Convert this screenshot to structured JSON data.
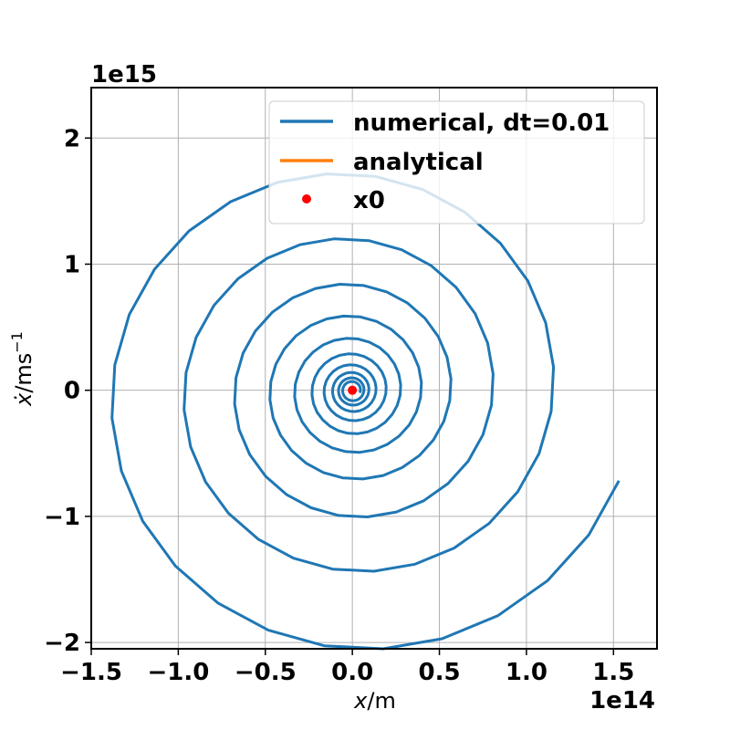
{
  "chart_data": {
    "type": "line",
    "x_multiplier_label": "1e14",
    "y_multiplier_label": "1e15",
    "x_multiplier": 100000000000000.0,
    "y_multiplier": 1000000000000000.0,
    "xlim": [
      -1.5,
      1.75
    ],
    "ylim": [
      -2.05,
      2.4
    ],
    "xticks": [
      -1.5,
      -1.0,
      -0.5,
      0.0,
      0.5,
      1.0,
      1.5
    ],
    "xtick_labels": [
      "−1.5",
      "−1.0",
      "−0.5",
      "0.0",
      "0.5",
      "1.0",
      "1.5"
    ],
    "yticks": [
      -2,
      -1,
      0,
      1,
      2
    ],
    "ytick_labels": [
      "−2",
      "−1",
      "0",
      "1",
      "2"
    ],
    "xlabel": {
      "symbol": "x",
      "unit": "/m"
    },
    "ylabel": {
      "symbol": "ẋ",
      "unit": "/ms",
      "exponent": "−1"
    },
    "grid": true,
    "legend_position": "top-right",
    "series": [
      {
        "name": "numerical, dt=0.01",
        "color": "#1f77b4",
        "spiral": {
          "turns": 10,
          "x_amp_start": 1.62,
          "y_amp_start": 2.2,
          "decay_per_turn": 0.7,
          "end_x": 1.58,
          "end_y": -0.74
        }
      },
      {
        "name": "analytical",
        "color": "#ff7f0e"
      }
    ],
    "points": [
      {
        "name": "x0",
        "x": 0.0,
        "y": 0.0,
        "color": "#ff0000"
      }
    ]
  }
}
